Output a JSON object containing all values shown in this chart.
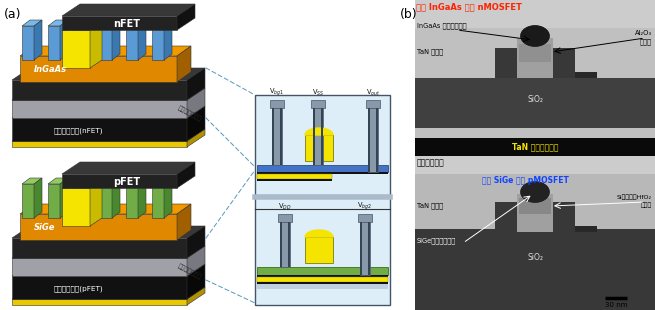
{
  "fig_width": 6.55,
  "fig_height": 3.1,
  "dpi": 100,
  "bg_color": "#ffffff",
  "label_a": "(a)",
  "label_b": "(b)",
  "panel_center": {
    "bg": "#ccdde8",
    "border": "#445566",
    "blue_bar": "#3060a0",
    "blue_bar2": "#4472c4",
    "green_bar": "#70ad47",
    "black_bar": "#111111",
    "yellow_bar": "#f5e400",
    "light_bg": "#ddeef8",
    "pillar_face": "#8899aa",
    "pillar_dark": "#667788",
    "pillar_outline": "#445566",
    "device_yellow": "#f5e400",
    "label_vbg1": "V$_{bg1}$",
    "label_vss": "V$_{SS}$",
    "label_vout": "V$_{out}$",
    "label_vdd": "V$_{DD}$",
    "label_vbg2": "V$_{bg2}$"
  },
  "colors": {
    "orange": "#e08800",
    "orange_top": "#f09a00",
    "orange_side": "#a06000",
    "black": "#1a1a1a",
    "black_top": "#333333",
    "black_side": "#0d0d0d",
    "grey": "#a0a0a8",
    "grey_top": "#c0c0c8",
    "grey_side": "#787880",
    "blue_fin": "#5b9bd5",
    "blue_fin_top": "#7ab8e8",
    "blue_fin_side": "#3a78b0",
    "green_fin": "#70ad47",
    "green_fin_top": "#92cc60",
    "green_fin_side": "#4a8830",
    "yellow_gate": "#f5e400",
    "yellow_gate_top": "#ffff00",
    "yellow_gate_side": "#c8bb00",
    "dark_bar": "#222222",
    "dark_bar_top": "#383838",
    "dark_bar_side": "#111111",
    "backgate_dark": "#111111",
    "backgate_top": "#202020",
    "backgate_side": "#080808",
    "yellow_trim": "#e8c800",
    "yellow_trim_top": "#f8d800",
    "yellow_trim_side": "#b09000"
  },
  "panel_b": {
    "title_top": "上段 InGaAs 細線 nMOSFET",
    "title_top_color": "#ff2200",
    "label_InGaAs_ch": "InGaAs 細線チャネル",
    "label_Al2O3": "Al₂O₃",
    "label_zetsuen1": "絶縁膜",
    "label_TaN_gate1": "TaN ゲート",
    "label_SiO2_1": "SiO₂",
    "label_TaN_back": "TaN バックゲート",
    "label_TaN_back_color": "#f5e400",
    "label_bonding": "はり合わせ面",
    "title_bottom": "下段 SiGe 細線 pMOSFET",
    "title_bottom_color": "#1144ff",
    "label_Si_protect": "Si保護層／HfO₂",
    "label_zetsuen2": "絶縁膜",
    "label_TaN_gate2": "TaN ゲート",
    "label_SiGe_ch": "SiGe細線チャネル",
    "label_SiO2_2": "SiO₂",
    "label_scalebar": "30 nm"
  },
  "dashed_line_color": "#5599bb"
}
